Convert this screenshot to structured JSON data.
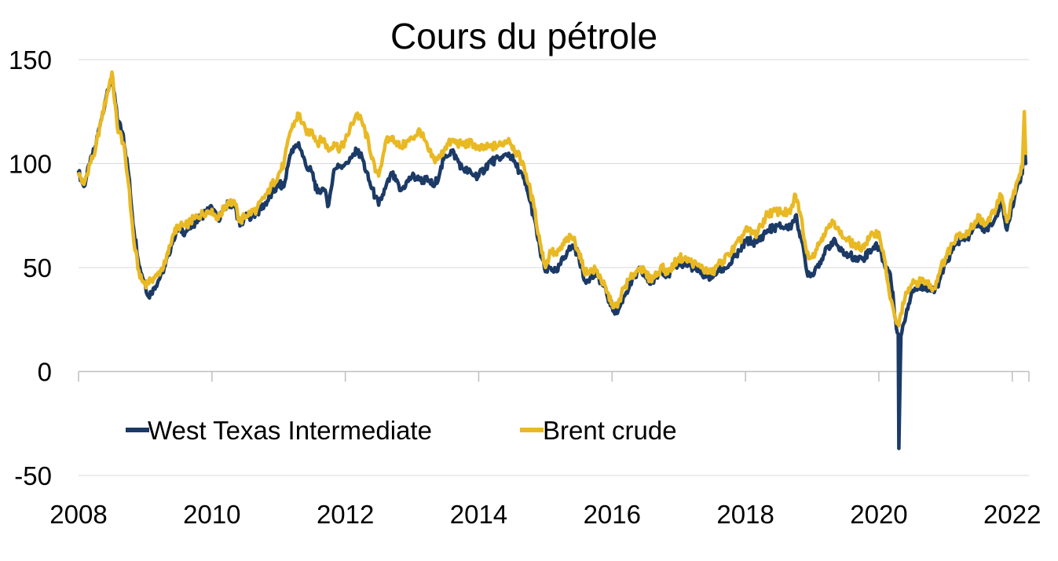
{
  "chart_data": {
    "type": "line",
    "title": "Cours du pétrole",
    "xlabel": "",
    "ylabel": "",
    "xlim": [
      2008,
      2022.25
    ],
    "ylim": [
      -50,
      150
    ],
    "x_ticks": [
      "2008",
      "2010",
      "2012",
      "2014",
      "2016",
      "2018",
      "2020",
      "2022"
    ],
    "y_ticks": [
      "150",
      "100",
      "50",
      "0",
      "-50"
    ],
    "grid": true,
    "legend_position": "bottom-left",
    "series": [
      {
        "name": "West Texas Intermediate",
        "color": "#1b3a66",
        "points": [
          [
            2008.0,
            96
          ],
          [
            2008.08,
            89
          ],
          [
            2008.17,
            100
          ],
          [
            2008.25,
            108
          ],
          [
            2008.33,
            120
          ],
          [
            2008.42,
            133
          ],
          [
            2008.5,
            142
          ],
          [
            2008.58,
            122
          ],
          [
            2008.67,
            114
          ],
          [
            2008.75,
            95
          ],
          [
            2008.83,
            68
          ],
          [
            2008.92,
            50
          ],
          [
            2009.0,
            42
          ],
          [
            2009.05,
            36
          ],
          [
            2009.12,
            40
          ],
          [
            2009.2,
            44
          ],
          [
            2009.3,
            51
          ],
          [
            2009.42,
            64
          ],
          [
            2009.5,
            69
          ],
          [
            2009.6,
            67
          ],
          [
            2009.75,
            72
          ],
          [
            2009.92,
            77
          ],
          [
            2010.0,
            79
          ],
          [
            2010.08,
            73
          ],
          [
            2010.25,
            81
          ],
          [
            2010.35,
            79
          ],
          [
            2010.42,
            70
          ],
          [
            2010.5,
            74
          ],
          [
            2010.67,
            76
          ],
          [
            2010.83,
            82
          ],
          [
            2011.0,
            90
          ],
          [
            2011.08,
            89
          ],
          [
            2011.17,
            104
          ],
          [
            2011.3,
            110
          ],
          [
            2011.42,
            98
          ],
          [
            2011.5,
            96
          ],
          [
            2011.58,
            86
          ],
          [
            2011.67,
            88
          ],
          [
            2011.75,
            80
          ],
          [
            2011.83,
            97
          ],
          [
            2011.92,
            99
          ],
          [
            2012.0,
            100
          ],
          [
            2012.1,
            103
          ],
          [
            2012.17,
            106
          ],
          [
            2012.25,
            103
          ],
          [
            2012.35,
            92
          ],
          [
            2012.45,
            84
          ],
          [
            2012.5,
            80
          ],
          [
            2012.6,
            88
          ],
          [
            2012.7,
            95
          ],
          [
            2012.83,
            87
          ],
          [
            2013.0,
            94
          ],
          [
            2013.12,
            92
          ],
          [
            2013.25,
            92
          ],
          [
            2013.33,
            89
          ],
          [
            2013.42,
            96
          ],
          [
            2013.5,
            104
          ],
          [
            2013.6,
            106
          ],
          [
            2013.75,
            98
          ],
          [
            2013.9,
            95
          ],
          [
            2014.0,
            94
          ],
          [
            2014.17,
            101
          ],
          [
            2014.33,
            102
          ],
          [
            2014.45,
            105
          ],
          [
            2014.55,
            100
          ],
          [
            2014.67,
            93
          ],
          [
            2014.75,
            84
          ],
          [
            2014.83,
            74
          ],
          [
            2014.92,
            58
          ],
          [
            2015.0,
            48
          ],
          [
            2015.08,
            50
          ],
          [
            2015.17,
            48
          ],
          [
            2015.33,
            58
          ],
          [
            2015.42,
            60
          ],
          [
            2015.5,
            56
          ],
          [
            2015.58,
            44
          ],
          [
            2015.67,
            45
          ],
          [
            2015.75,
            46
          ],
          [
            2015.83,
            44
          ],
          [
            2015.92,
            37
          ],
          [
            2016.0,
            31
          ],
          [
            2016.08,
            28
          ],
          [
            2016.17,
            36
          ],
          [
            2016.33,
            45
          ],
          [
            2016.42,
            49
          ],
          [
            2016.58,
            42
          ],
          [
            2016.75,
            49
          ],
          [
            2016.83,
            46
          ],
          [
            2017.0,
            52
          ],
          [
            2017.17,
            51
          ],
          [
            2017.33,
            47
          ],
          [
            2017.5,
            45
          ],
          [
            2017.58,
            48
          ],
          [
            2017.75,
            51
          ],
          [
            2017.92,
            58
          ],
          [
            2018.0,
            63
          ],
          [
            2018.17,
            62
          ],
          [
            2018.33,
            68
          ],
          [
            2018.5,
            70
          ],
          [
            2018.67,
            69
          ],
          [
            2018.75,
            75
          ],
          [
            2018.83,
            65
          ],
          [
            2018.92,
            48
          ],
          [
            2019.0,
            47
          ],
          [
            2019.17,
            56
          ],
          [
            2019.33,
            64
          ],
          [
            2019.42,
            58
          ],
          [
            2019.5,
            56
          ],
          [
            2019.67,
            55
          ],
          [
            2019.75,
            54
          ],
          [
            2019.92,
            60
          ],
          [
            2020.0,
            60
          ],
          [
            2020.08,
            52
          ],
          [
            2020.17,
            47
          ],
          [
            2020.25,
            25
          ],
          [
            2020.29,
            18
          ],
          [
            2020.3,
            -37
          ],
          [
            2020.33,
            17
          ],
          [
            2020.42,
            30
          ],
          [
            2020.5,
            39
          ],
          [
            2020.67,
            41
          ],
          [
            2020.83,
            38
          ],
          [
            2020.92,
            45
          ],
          [
            2021.0,
            52
          ],
          [
            2021.17,
            62
          ],
          [
            2021.33,
            64
          ],
          [
            2021.5,
            72
          ],
          [
            2021.58,
            67
          ],
          [
            2021.75,
            74
          ],
          [
            2021.83,
            82
          ],
          [
            2021.92,
            68
          ],
          [
            2022.0,
            79
          ],
          [
            2022.08,
            90
          ],
          [
            2022.15,
            95
          ],
          [
            2022.18,
            115
          ],
          [
            2022.2,
            100
          ]
        ]
      },
      {
        "name": "Brent crude",
        "color": "#e9b924",
        "points": [
          [
            2008.0,
            95
          ],
          [
            2008.08,
            90
          ],
          [
            2008.17,
            100
          ],
          [
            2008.25,
            106
          ],
          [
            2008.33,
            120
          ],
          [
            2008.42,
            132
          ],
          [
            2008.5,
            144
          ],
          [
            2008.58,
            118
          ],
          [
            2008.67,
            110
          ],
          [
            2008.75,
            90
          ],
          [
            2008.83,
            62
          ],
          [
            2008.92,
            45
          ],
          [
            2009.0,
            42
          ],
          [
            2009.08,
            44
          ],
          [
            2009.17,
            46
          ],
          [
            2009.3,
            52
          ],
          [
            2009.42,
            66
          ],
          [
            2009.5,
            70
          ],
          [
            2009.6,
            70
          ],
          [
            2009.75,
            74
          ],
          [
            2009.92,
            77
          ],
          [
            2010.0,
            78
          ],
          [
            2010.08,
            73
          ],
          [
            2010.25,
            82
          ],
          [
            2010.35,
            80
          ],
          [
            2010.42,
            72
          ],
          [
            2010.5,
            75
          ],
          [
            2010.67,
            78
          ],
          [
            2010.83,
            86
          ],
          [
            2011.0,
            95
          ],
          [
            2011.08,
            100
          ],
          [
            2011.17,
            115
          ],
          [
            2011.3,
            124
          ],
          [
            2011.42,
            114
          ],
          [
            2011.5,
            116
          ],
          [
            2011.58,
            110
          ],
          [
            2011.67,
            112
          ],
          [
            2011.75,
            106
          ],
          [
            2011.83,
            110
          ],
          [
            2011.92,
            107
          ],
          [
            2012.0,
            111
          ],
          [
            2012.1,
            119
          ],
          [
            2012.17,
            124
          ],
          [
            2012.25,
            120
          ],
          [
            2012.35,
            110
          ],
          [
            2012.45,
            96
          ],
          [
            2012.5,
            94
          ],
          [
            2012.6,
            110
          ],
          [
            2012.7,
            113
          ],
          [
            2012.83,
            108
          ],
          [
            2013.0,
            112
          ],
          [
            2013.12,
            116
          ],
          [
            2013.25,
            106
          ],
          [
            2013.33,
            102
          ],
          [
            2013.42,
            103
          ],
          [
            2013.5,
            108
          ],
          [
            2013.6,
            111
          ],
          [
            2013.75,
            109
          ],
          [
            2013.9,
            110
          ],
          [
            2014.0,
            107
          ],
          [
            2014.17,
            108
          ],
          [
            2014.33,
            109
          ],
          [
            2014.45,
            112
          ],
          [
            2014.55,
            106
          ],
          [
            2014.67,
            100
          ],
          [
            2014.75,
            90
          ],
          [
            2014.83,
            79
          ],
          [
            2014.92,
            62
          ],
          [
            2015.0,
            50
          ],
          [
            2015.08,
            58
          ],
          [
            2015.17,
            56
          ],
          [
            2015.33,
            64
          ],
          [
            2015.42,
            64
          ],
          [
            2015.5,
            58
          ],
          [
            2015.58,
            48
          ],
          [
            2015.67,
            48
          ],
          [
            2015.75,
            49
          ],
          [
            2015.83,
            45
          ],
          [
            2015.92,
            38
          ],
          [
            2016.0,
            33
          ],
          [
            2016.08,
            31
          ],
          [
            2016.17,
            40
          ],
          [
            2016.33,
            47
          ],
          [
            2016.42,
            50
          ],
          [
            2016.58,
            44
          ],
          [
            2016.75,
            50
          ],
          [
            2016.83,
            47
          ],
          [
            2017.0,
            55
          ],
          [
            2017.17,
            53
          ],
          [
            2017.33,
            50
          ],
          [
            2017.5,
            47
          ],
          [
            2017.58,
            51
          ],
          [
            2017.75,
            56
          ],
          [
            2017.92,
            63
          ],
          [
            2018.0,
            68
          ],
          [
            2018.17,
            66
          ],
          [
            2018.33,
            76
          ],
          [
            2018.5,
            77
          ],
          [
            2018.67,
            76
          ],
          [
            2018.75,
            85
          ],
          [
            2018.83,
            75
          ],
          [
            2018.92,
            57
          ],
          [
            2019.0,
            55
          ],
          [
            2019.17,
            66
          ],
          [
            2019.33,
            72
          ],
          [
            2019.42,
            66
          ],
          [
            2019.5,
            64
          ],
          [
            2019.67,
            60
          ],
          [
            2019.75,
            60
          ],
          [
            2019.92,
            66
          ],
          [
            2020.0,
            67
          ],
          [
            2020.08,
            55
          ],
          [
            2020.17,
            35
          ],
          [
            2020.25,
            25
          ],
          [
            2020.3,
            22
          ],
          [
            2020.33,
            28
          ],
          [
            2020.42,
            38
          ],
          [
            2020.5,
            42
          ],
          [
            2020.67,
            44
          ],
          [
            2020.83,
            40
          ],
          [
            2020.92,
            49
          ],
          [
            2021.0,
            55
          ],
          [
            2021.17,
            66
          ],
          [
            2021.33,
            66
          ],
          [
            2021.5,
            75
          ],
          [
            2021.58,
            70
          ],
          [
            2021.75,
            78
          ],
          [
            2021.83,
            85
          ],
          [
            2021.92,
            72
          ],
          [
            2022.0,
            83
          ],
          [
            2022.08,
            92
          ],
          [
            2022.15,
            98
          ],
          [
            2022.18,
            125
          ],
          [
            2022.2,
            105
          ]
        ]
      }
    ]
  }
}
